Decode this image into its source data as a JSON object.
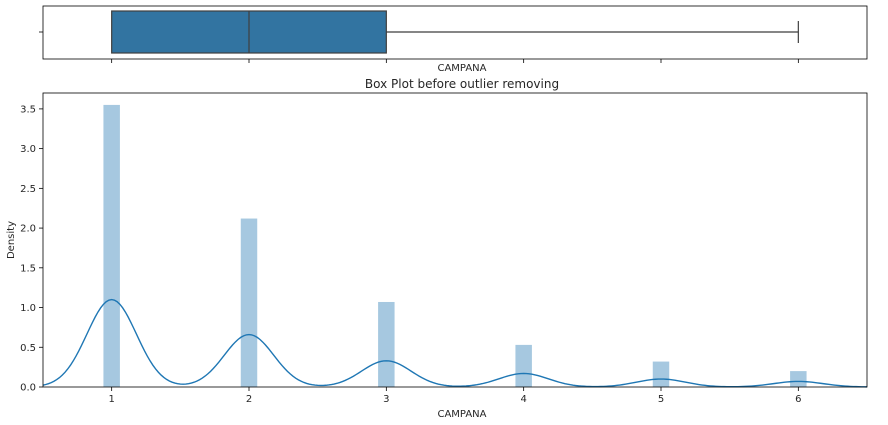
{
  "chart_data": [
    {
      "type": "box",
      "xlabel": "CAMPANA",
      "x_ticks": [
        1,
        2,
        3,
        4,
        5,
        6
      ],
      "xlim": [
        0.5,
        6.5
      ],
      "min": 1,
      "q1": 1,
      "median": 2,
      "q3": 3,
      "whisker_high": 6,
      "box_color": "#3274a1"
    },
    {
      "type": "bar",
      "title": "Box Plot before outlier removing",
      "xlabel": "CAMPANA",
      "ylabel": "Density",
      "xlim": [
        0.5,
        6.5
      ],
      "ylim": [
        0,
        3.7
      ],
      "x_ticks": [
        1,
        2,
        3,
        4,
        5,
        6
      ],
      "y_ticks": [
        "0.0",
        "0.5",
        "1.0",
        "1.5",
        "2.0",
        "2.5",
        "3.0",
        "3.5"
      ],
      "categories": [
        1,
        2,
        3,
        4,
        5,
        6
      ],
      "values": [
        3.55,
        2.12,
        1.07,
        0.53,
        0.32,
        0.2
      ],
      "bar_color": "#a6c8e0",
      "kde": {
        "color": "#1f77b4",
        "peaks": [
          {
            "x": 1,
            "y": 1.1
          },
          {
            "x": 2,
            "y": 0.66
          },
          {
            "x": 3,
            "y": 0.33
          },
          {
            "x": 4,
            "y": 0.17
          },
          {
            "x": 5,
            "y": 0.1
          },
          {
            "x": 6,
            "y": 0.07
          }
        ]
      }
    }
  ]
}
